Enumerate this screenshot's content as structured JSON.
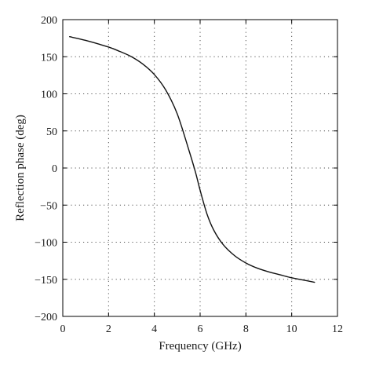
{
  "chart_data": {
    "type": "line",
    "title": "",
    "xlabel": "Frequency (GHz)",
    "ylabel": "Reflection phase (deg)",
    "xlim": [
      0,
      12
    ],
    "ylim": [
      -200,
      200
    ],
    "xticks": [
      0,
      2,
      4,
      6,
      8,
      10,
      12
    ],
    "yticks": [
      200,
      150,
      100,
      50,
      0,
      -50,
      -100,
      -150,
      -200
    ],
    "xtick_labels": [
      "0",
      "2",
      "4",
      "6",
      "8",
      "10",
      "12"
    ],
    "ytick_labels": [
      "200",
      "150",
      "100",
      "50",
      "0",
      "−50",
      "−100",
      "−150",
      "−200"
    ],
    "grid": true,
    "series": [
      {
        "color": "#111111",
        "x": [
          0.3,
          1.0,
          2.0,
          2.5,
          3.0,
          3.5,
          4.0,
          4.5,
          5.0,
          5.5,
          5.8,
          6.0,
          6.3,
          6.6,
          7.0,
          7.5,
          8.0,
          8.5,
          9.0,
          9.5,
          10.0,
          10.5,
          11.0
        ],
        "y": [
          177,
          172,
          163,
          157,
          150,
          140,
          126,
          105,
          73,
          25,
          -6,
          -30,
          -62,
          -84,
          -103,
          -118,
          -128,
          -135,
          -140,
          -144,
          -148,
          -151,
          -154
        ]
      }
    ]
  }
}
